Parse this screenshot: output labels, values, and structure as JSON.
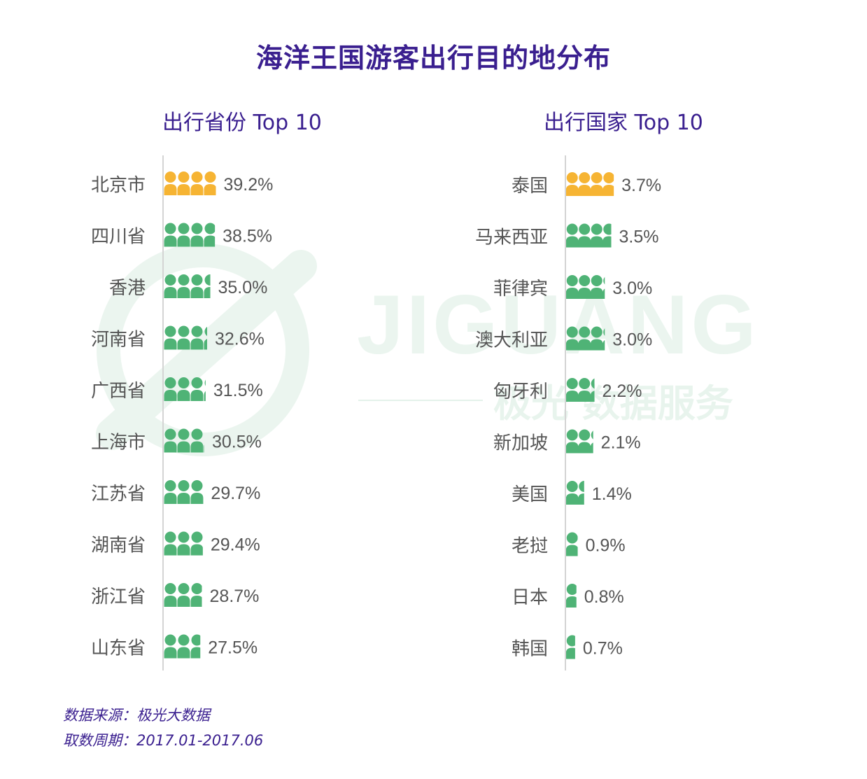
{
  "title": "海洋王国游客出行目的地分布",
  "colors": {
    "highlight": "#f6b433",
    "normal": "#4fb376",
    "title": "#3a1f8f",
    "label": "#555555"
  },
  "watermark": {
    "text_latin": "JIGUANG",
    "text_cn": "极光 数据服务"
  },
  "chart_data": [
    {
      "type": "bar",
      "title": "出行省份 Top 10",
      "categories": [
        "北京市",
        "四川省",
        "香港",
        "河南省",
        "广西省",
        "上海市",
        "江苏省",
        "湖南省",
        "浙江省",
        "山东省"
      ],
      "values": [
        39.2,
        38.5,
        35.0,
        32.6,
        31.5,
        30.5,
        29.7,
        29.4,
        28.7,
        27.5
      ],
      "labels": [
        "39.2%",
        "38.5%",
        "35.0%",
        "32.6%",
        "31.5%",
        "30.5%",
        "29.7%",
        "29.4%",
        "28.7%",
        "27.5%"
      ],
      "unit": "%",
      "highlight_index": 0
    },
    {
      "type": "bar",
      "title": "出行国家 Top 10",
      "categories": [
        "泰国",
        "马来西亚",
        "菲律宾",
        "澳大利亚",
        "匈牙利",
        "新加坡",
        "美国",
        "老挝",
        "日本",
        "韩国"
      ],
      "values": [
        3.7,
        3.5,
        3.0,
        3.0,
        2.2,
        2.1,
        1.4,
        0.9,
        0.8,
        0.7
      ],
      "labels": [
        "3.7%",
        "3.5%",
        "3.0%",
        "3.0%",
        "2.2%",
        "2.1%",
        "1.4%",
        "0.9%",
        "0.8%",
        "0.7%"
      ],
      "unit": "%",
      "highlight_index": 0
    }
  ],
  "footer": {
    "source": "数据来源：极光大数据",
    "period": "取数周期：2017.01-2017.06"
  }
}
